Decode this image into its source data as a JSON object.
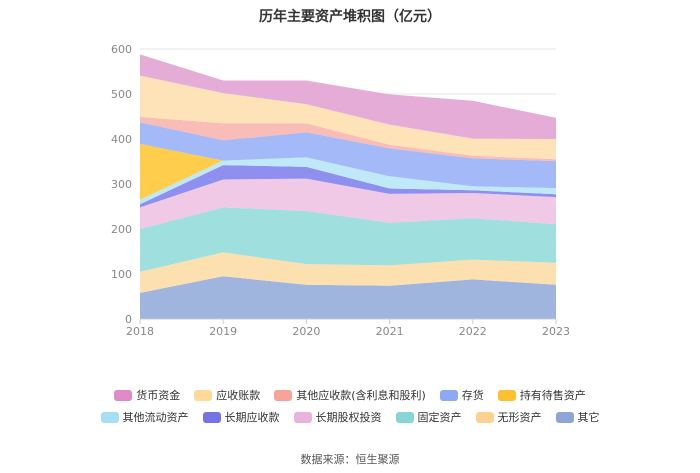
{
  "chart_data": {
    "type": "area",
    "stacked": true,
    "title": "历年主要资产堆积图（亿元）",
    "x": [
      "2018",
      "2019",
      "2020",
      "2021",
      "2022",
      "2023"
    ],
    "ylim": [
      0,
      600
    ],
    "yticks": [
      "0",
      "100",
      "200",
      "300",
      "400",
      "500",
      "600"
    ],
    "series": [
      {
        "name": "其它",
        "color": "#9fb5dd",
        "values": [
          58,
          95,
          76,
          74,
          88,
          76
        ]
      },
      {
        "name": "无形资产",
        "color": "#fde0b0",
        "values": [
          47,
          53,
          46,
          45,
          44,
          49
        ]
      },
      {
        "name": "固定资产",
        "color": "#9fe0df",
        "values": [
          95,
          100,
          118,
          95,
          92,
          86
        ]
      },
      {
        "name": "长期股权投资",
        "color": "#efc9e6",
        "values": [
          48,
          62,
          72,
          64,
          56,
          60
        ]
      },
      {
        "name": "长期应收款",
        "color": "#8f8ff0",
        "values": [
          7,
          32,
          26,
          12,
          6,
          6
        ]
      },
      {
        "name": "其他流动资产",
        "color": "#bfe8f8",
        "values": [
          10,
          10,
          21,
          27,
          9,
          14
        ]
      },
      {
        "name": "持有待售资产",
        "color": "#fecd4c",
        "values": [
          124,
          0,
          0,
          0,
          0,
          0
        ]
      },
      {
        "name": "存货",
        "color": "#a4b9f8",
        "values": [
          48,
          45,
          56,
          62,
          62,
          60
        ]
      },
      {
        "name": "其他应收款(含利息和股利)",
        "color": "#f9bcb6",
        "values": [
          12,
          38,
          20,
          8,
          6,
          4
        ]
      },
      {
        "name": "应收账款",
        "color": "#fee3b8",
        "values": [
          92,
          67,
          42,
          45,
          38,
          45
        ]
      },
      {
        "name": "货币资金",
        "color": "#e5acd7",
        "values": [
          47,
          28,
          53,
          67,
          84,
          47
        ]
      }
    ],
    "legend_order": [
      "货币资金",
      "应收账款",
      "其他应收款(含利息和股利)",
      "存货",
      "持有待售资产",
      "其他流动资产",
      "长期应收款",
      "长期股权投资",
      "固定资产",
      "无形资产",
      "其它"
    ]
  },
  "legend": {
    "row1": [
      {
        "name": "货币资金",
        "color": "#e08bc7"
      },
      {
        "name": "应收账款",
        "color": "#fdd99a"
      },
      {
        "name": "其他应收款(含利息和股利)",
        "color": "#f7a397"
      },
      {
        "name": "存货",
        "color": "#8ea9f4"
      },
      {
        "name": "持有待售资产",
        "color": "#fdc02e"
      }
    ],
    "row2": [
      {
        "name": "其他流动资产",
        "color": "#a6def6"
      },
      {
        "name": "长期应收款",
        "color": "#7474e6"
      },
      {
        "name": "长期股权投资",
        "color": "#e8b4dd"
      },
      {
        "name": "固定资产",
        "color": "#85d6d5"
      },
      {
        "name": "无形资产",
        "color": "#fdd291"
      },
      {
        "name": "其它",
        "color": "#8ea6d6"
      }
    ]
  },
  "source": "数据来源：恒生聚源"
}
